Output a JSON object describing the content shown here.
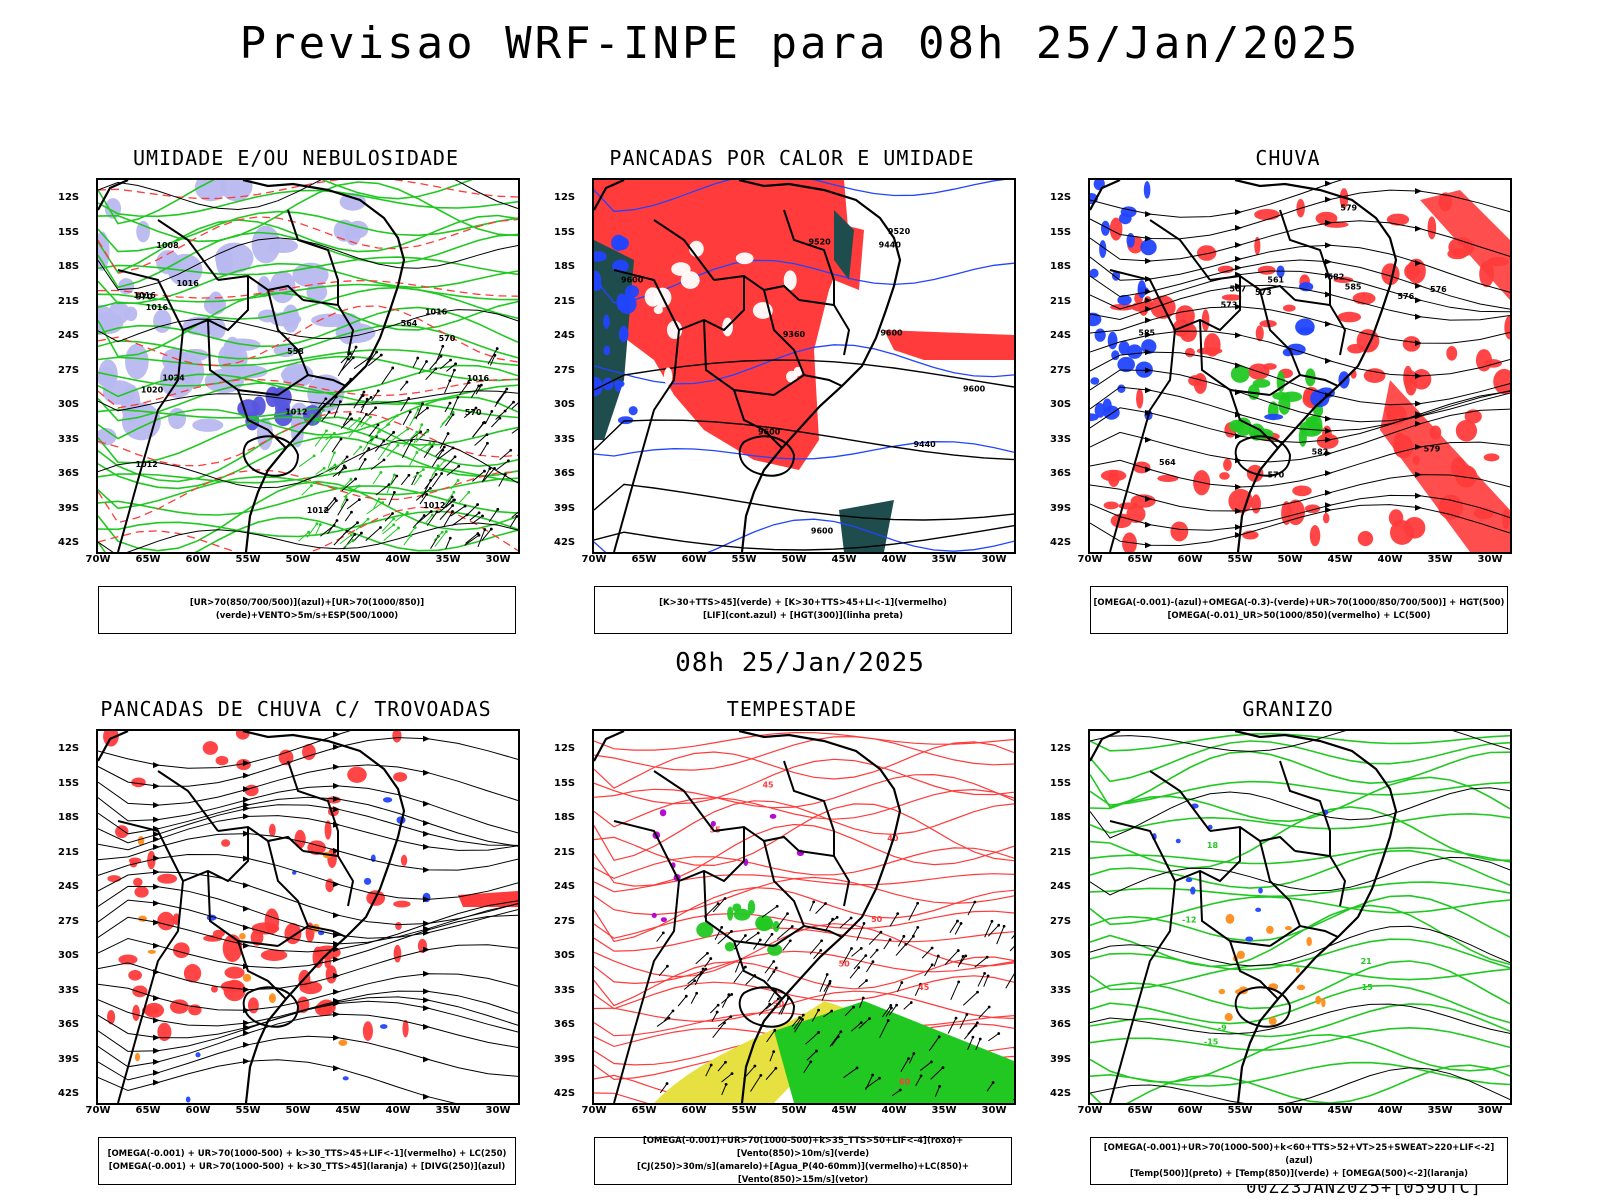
{
  "title": "Previsao WRF-INPE  para 08h 25/Jan/2025",
  "subtitle": "08h 25/Jan/2025",
  "footer": "00Z23JAN2025+[059UTC]",
  "axis": {
    "lat_labels": [
      "12S",
      "15S",
      "18S",
      "21S",
      "24S",
      "27S",
      "30S",
      "33S",
      "36S",
      "39S",
      "42S"
    ],
    "lon_labels": [
      "70W",
      "65W",
      "60W",
      "55W",
      "50W",
      "45W",
      "40W",
      "35W",
      "30W"
    ]
  },
  "colors": {
    "red": "#ff3b3b",
    "green": "#22c822",
    "blue": "#2244ff",
    "lavender": "#b8b8f0",
    "yellow": "#e6e040",
    "orange": "#ff8c1a",
    "teal": "#1f4d4d",
    "purple": "#b000d0"
  },
  "panels": [
    {
      "id": "umidade",
      "title": "UMIDADE E/OU NEBULOSIDADE",
      "legend": [
        "[UR>70(850/700/500)](azul)+[UR>70(1000/850)](verde)+VENTO>5m/s+ESP(500/1000)"
      ],
      "labels": [
        "1016",
        "1016",
        "1012",
        "1012",
        "1012",
        "1024",
        "1020",
        "1016",
        "1012",
        "1008",
        "1016",
        "1016",
        "570",
        "570",
        "570",
        "564",
        "558"
      ]
    },
    {
      "id": "pancadas-calor",
      "title": "PANCADAS POR CALOR E UMIDADE",
      "legend": [
        "[K>30+TTS>45](verde) + [K>30+TTS>45+LI<-1](vermelho)",
        "[LIF](cont.azul) + [HGT(300)](linha preta)"
      ],
      "labels": [
        "9600",
        "9600",
        "9600",
        "9600",
        "9600",
        "9520",
        "9520",
        "9440",
        "9440",
        "9360"
      ]
    },
    {
      "id": "chuva",
      "title": "CHUVA",
      "legend": [
        "[OMEGA(-0.001)-(azul)+OMEGA(-0.3)-(verde)+UR>70(1000/850/700/500)] + HGT(500)",
        "[OMEGA(-0.01)_UR>50(1000/850)(vermelho) + LC(500)"
      ],
      "labels": [
        "585",
        "585",
        "582",
        "582",
        "579",
        "579",
        "576",
        "576",
        "573",
        "573",
        "570",
        "567",
        "564",
        "561"
      ]
    },
    {
      "id": "pancadas-trovoadas",
      "title": "PANCADAS DE CHUVA C/ TROVOADAS",
      "legend": [
        "[OMEGA(-0.001) + UR>70(1000-500) + k>30_TTS>45+LIF<-1](vermelho) + LC(250)",
        "[OMEGA(-0.001) + UR>70(1000-500) + k>30_TTS>45](laranja) + [DIVG(250)](azul)"
      ],
      "labels": []
    },
    {
      "id": "tempestade",
      "title": "TEMPESTADE",
      "legend": [
        "[OMEGA(-0.001)+UR>70(1000-500)+k>35_TTS>50+LIF<-4](roxo)+[Vento(850)>10m/s](verde)",
        "[CJ(250)>30m/s](amarelo)+[Agua_P(40-60mm)](vermelho)+LC(850)+[Vento(850)>15m/s](vetor)"
      ],
      "labels": [
        "40",
        "45",
        "50",
        "50",
        "45",
        "50",
        "55",
        "60"
      ]
    },
    {
      "id": "granizo",
      "title": "GRANIZO",
      "legend": [
        "[OMEGA(-0.001)+UR>70(1000-500)+k<60+TTS>52+VT>25+SWEAT>220+LIF<-2](azul)",
        "[Temp(500)](preto) + [Temp(850)](verde) + [OMEGA(500)<-2](laranja)"
      ],
      "labels": [
        "-15",
        "-12",
        "-9",
        "15",
        "18",
        "21"
      ]
    }
  ]
}
